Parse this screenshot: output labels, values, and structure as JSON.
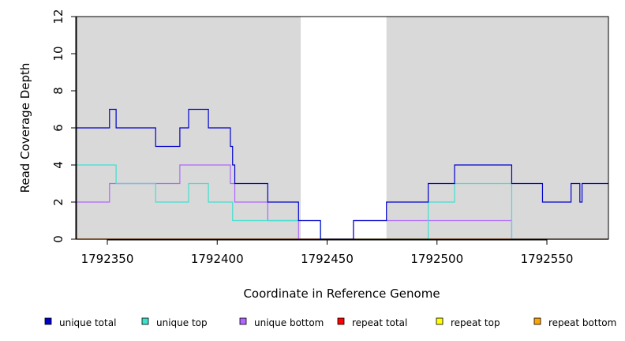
{
  "chart_data": {
    "type": "line",
    "title": "",
    "xlabel": "Coordinate in Reference Genome",
    "ylabel": "Read Coverage Depth",
    "xlim": [
      1792336,
      1792578
    ],
    "ylim": [
      0,
      12
    ],
    "xticks": [
      1792350,
      1792400,
      1792450,
      1792500,
      1792550
    ],
    "yticks": [
      0,
      2,
      4,
      6,
      8,
      10,
      12
    ],
    "shaded_regions": [
      [
        1792336,
        1792438
      ],
      [
        1792477,
        1792578
      ]
    ],
    "shaded_color": "#d9d9d9",
    "legend_placement": "bottom",
    "series": [
      {
        "name": "unique total",
        "color": "#0000cc",
        "points": [
          [
            1792336,
            6
          ],
          [
            1792351,
            6
          ],
          [
            1792351,
            7
          ],
          [
            1792354,
            7
          ],
          [
            1792354,
            6
          ],
          [
            1792372,
            6
          ],
          [
            1792372,
            5
          ],
          [
            1792383,
            5
          ],
          [
            1792383,
            6
          ],
          [
            1792387,
            6
          ],
          [
            1792387,
            7
          ],
          [
            1792396,
            7
          ],
          [
            1792396,
            6
          ],
          [
            1792406,
            6
          ],
          [
            1792406,
            5
          ],
          [
            1792407,
            5
          ],
          [
            1792407,
            4
          ],
          [
            1792408,
            4
          ],
          [
            1792408,
            3
          ],
          [
            1792423,
            3
          ],
          [
            1792423,
            2
          ],
          [
            1792437,
            2
          ],
          [
            1792437,
            1
          ],
          [
            1792447,
            1
          ],
          [
            1792447,
            0
          ],
          [
            1792462,
            0
          ],
          [
            1792462,
            1
          ],
          [
            1792477,
            1
          ],
          [
            1792477,
            2
          ],
          [
            1792496,
            2
          ],
          [
            1792496,
            3
          ],
          [
            1792508,
            3
          ],
          [
            1792508,
            4
          ],
          [
            1792534,
            4
          ],
          [
            1792534,
            3
          ],
          [
            1792548,
            3
          ],
          [
            1792548,
            2
          ],
          [
            1792561,
            2
          ],
          [
            1792561,
            3
          ],
          [
            1792565,
            3
          ],
          [
            1792565,
            2
          ],
          [
            1792566,
            2
          ],
          [
            1792566,
            3
          ],
          [
            1792578,
            3
          ]
        ]
      },
      {
        "name": "unique top",
        "color": "#40e0d0",
        "points": [
          [
            1792336,
            4
          ],
          [
            1792354,
            4
          ],
          [
            1792354,
            3
          ],
          [
            1792372,
            3
          ],
          [
            1792372,
            2
          ],
          [
            1792387,
            2
          ],
          [
            1792387,
            3
          ],
          [
            1792396,
            3
          ],
          [
            1792396,
            2
          ],
          [
            1792407,
            2
          ],
          [
            1792407,
            1
          ],
          [
            1792447,
            1
          ],
          [
            1792447,
            0
          ],
          [
            1792496,
            0
          ],
          [
            1792496,
            2
          ],
          [
            1792508,
            2
          ],
          [
            1792508,
            3
          ],
          [
            1792534,
            3
          ],
          [
            1792534,
            0
          ],
          [
            1792578,
            0
          ]
        ]
      },
      {
        "name": "unique bottom",
        "color": "#b066ff",
        "points": [
          [
            1792336,
            2
          ],
          [
            1792351,
            2
          ],
          [
            1792351,
            3
          ],
          [
            1792383,
            3
          ],
          [
            1792383,
            4
          ],
          [
            1792406,
            4
          ],
          [
            1792406,
            3
          ],
          [
            1792408,
            3
          ],
          [
            1792408,
            2
          ],
          [
            1792423,
            2
          ],
          [
            1792423,
            1
          ],
          [
            1792437,
            1
          ],
          [
            1792437,
            0
          ],
          [
            1792462,
            0
          ],
          [
            1792462,
            1
          ],
          [
            1792534,
            1
          ],
          [
            1792534,
            0
          ],
          [
            1792578,
            0
          ]
        ]
      },
      {
        "name": "repeat total",
        "color": "#ff0000",
        "points": [
          [
            1792336,
            0
          ],
          [
            1792578,
            0
          ]
        ]
      },
      {
        "name": "repeat top",
        "color": "#ffff00",
        "points": [
          [
            1792336,
            0
          ],
          [
            1792578,
            0
          ]
        ]
      },
      {
        "name": "repeat bottom",
        "color": "#ffa500",
        "points": [
          [
            1792336,
            0
          ],
          [
            1792578,
            0
          ]
        ]
      }
    ]
  }
}
